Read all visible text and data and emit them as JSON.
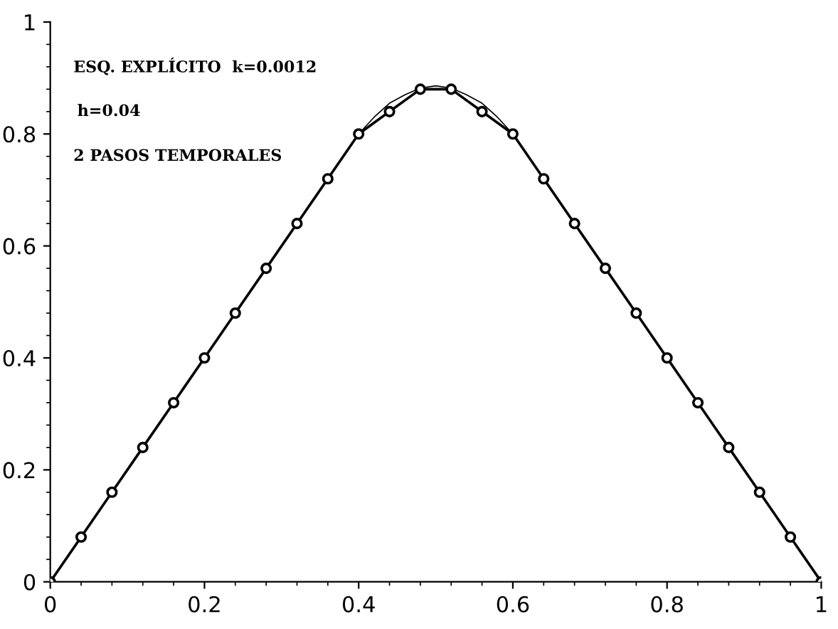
{
  "chart_data": {
    "type": "line",
    "annotations": [
      "ESQ. EXPLÍCITO  k=0.0012",
      "h=0.04",
      "2 PASOS TEMPORALES"
    ],
    "series": [
      {
        "color": "#000000",
        "marker": "circle",
        "x": [
          0,
          0.04,
          0.08,
          0.12,
          0.16,
          0.2,
          0.24,
          0.28,
          0.32,
          0.36,
          0.4,
          0.44,
          0.48,
          0.52,
          0.56,
          0.6,
          0.64,
          0.68,
          0.72,
          0.76,
          0.8,
          0.84,
          0.88,
          0.92,
          0.96,
          1
        ],
        "values": [
          0,
          0.08,
          0.16,
          0.24,
          0.32,
          0.4,
          0.48,
          0.56,
          0.64,
          0.72,
          0.8,
          0.84,
          0.88,
          0.88,
          0.84,
          0.8,
          0.72,
          0.64,
          0.56,
          0.48,
          0.4,
          0.32,
          0.24,
          0.16,
          0.08,
          0
        ]
      },
      {
        "color": "#000000",
        "marker": "none",
        "x": [
          0,
          0.1,
          0.2,
          0.3,
          0.36,
          0.4,
          0.42,
          0.44,
          0.46,
          0.48,
          0.5,
          0.52,
          0.54,
          0.56,
          0.58,
          0.6,
          0.64,
          0.7,
          0.8,
          0.9,
          1
        ],
        "values": [
          0,
          0.2,
          0.4,
          0.6,
          0.72,
          0.8,
          0.83,
          0.855,
          0.87,
          0.882,
          0.886,
          0.882,
          0.87,
          0.855,
          0.83,
          0.8,
          0.72,
          0.6,
          0.4,
          0.2,
          0
        ]
      }
    ],
    "xlim": [
      0,
      1
    ],
    "ylim": [
      0,
      1
    ],
    "xticks": [
      0,
      0.2,
      0.4,
      0.6,
      0.8,
      1
    ],
    "yticks": [
      0,
      0.2,
      0.4,
      0.6,
      0.8,
      1
    ],
    "grid": false,
    "legend": false
  }
}
